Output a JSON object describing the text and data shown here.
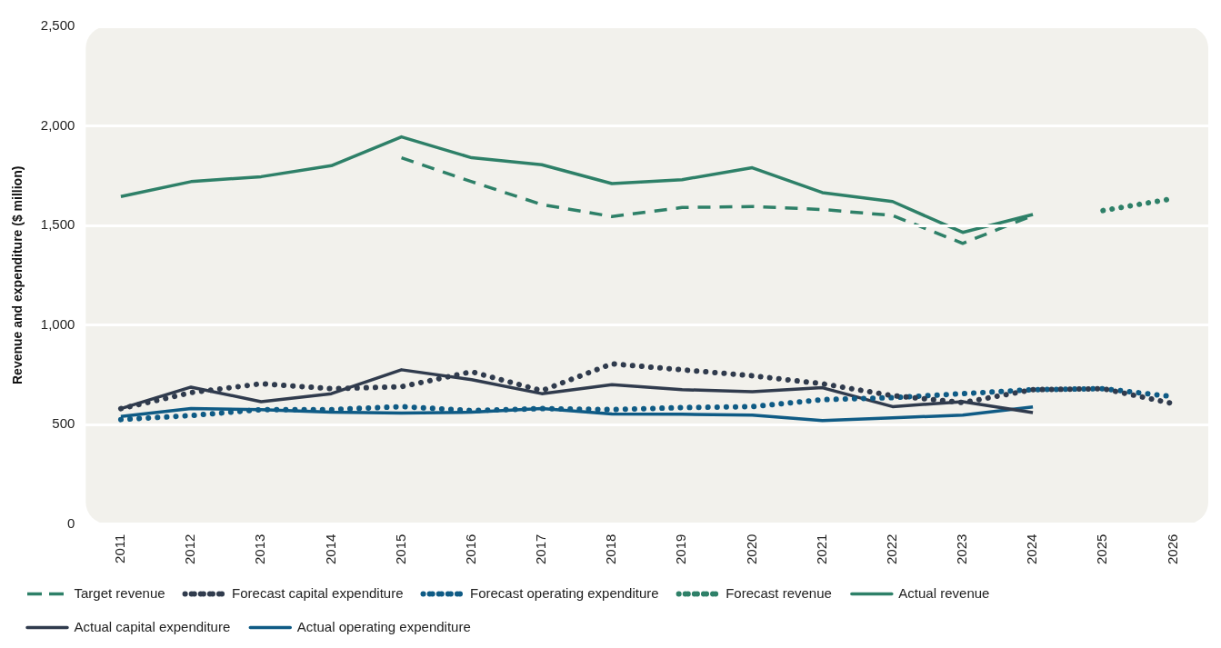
{
  "chart_data": {
    "type": "line",
    "ylabel": "Revenue and expenditure ($ million)",
    "categories": [
      "2011",
      "2012",
      "2013",
      "2014",
      "2015",
      "2016",
      "2017",
      "2018",
      "2019",
      "2020",
      "2021",
      "2022",
      "2023",
      "2024",
      "2025",
      "2026"
    ],
    "ylim": [
      0,
      2500
    ],
    "yticks": [
      0,
      {
        "value": 500,
        "label": "500"
      },
      {
        "value": 1000,
        "label": "1,000"
      },
      {
        "value": 1500,
        "label": "1,500"
      },
      {
        "value": 2000,
        "label": "2,000"
      },
      {
        "value": 2500,
        "label": "2,500"
      }
    ],
    "grid": "y",
    "legend": "bottom",
    "marker": "none",
    "series": [
      {
        "name": "Target revenue",
        "color": "#2e8068",
        "line_style": "dashed",
        "values": [
          null,
          null,
          null,
          null,
          1840,
          1720,
          1605,
          1545,
          1590,
          1595,
          1580,
          1550,
          1410,
          1550,
          null,
          null
        ]
      },
      {
        "name": "Forecast capital expenditure",
        "color": "#303b4d",
        "line_style": "dotted",
        "values": [
          580,
          660,
          705,
          680,
          690,
          765,
          670,
          805,
          775,
          745,
          705,
          645,
          610,
          675,
          680,
          605
        ]
      },
      {
        "name": "Forecast operating expenditure",
        "color": "#0f5b85",
        "line_style": "dotted",
        "values": [
          525,
          545,
          575,
          575,
          590,
          570,
          580,
          575,
          585,
          590,
          625,
          635,
          655,
          675,
          680,
          640
        ]
      },
      {
        "name": "Forecast revenue",
        "color": "#2e8068",
        "line_style": "dotted",
        "values": [
          null,
          null,
          null,
          null,
          null,
          null,
          null,
          null,
          null,
          null,
          null,
          null,
          null,
          null,
          1575,
          1635
        ]
      },
      {
        "name": "Actual revenue",
        "color": "#2e8068",
        "line_style": "solid",
        "values": [
          1645,
          1720,
          1745,
          1800,
          1945,
          1840,
          1805,
          1710,
          1730,
          1790,
          1665,
          1620,
          1465,
          1555,
          null,
          null
        ]
      },
      {
        "name": "Actual capital expenditure",
        "color": "#303b4d",
        "line_style": "solid",
        "values": [
          580,
          688,
          615,
          655,
          775,
          725,
          655,
          700,
          675,
          665,
          685,
          590,
          615,
          560,
          null,
          null
        ]
      },
      {
        "name": "Actual operating expenditure",
        "color": "#0f5b85",
        "line_style": "solid",
        "values": [
          540,
          580,
          575,
          562,
          557,
          562,
          580,
          553,
          552,
          547,
          520,
          534,
          547,
          588,
          null,
          null
        ]
      }
    ]
  }
}
